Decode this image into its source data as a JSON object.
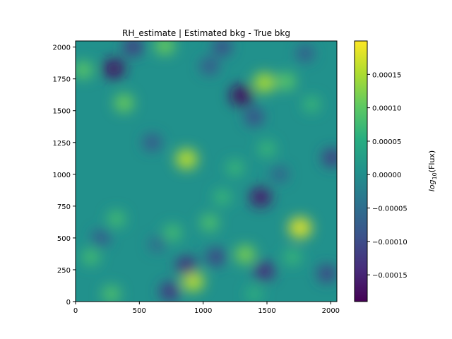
{
  "chart_data": {
    "type": "heatmap",
    "title": "RH_estimate | Estimated bkg - True bkg",
    "xlabel": "",
    "ylabel": "",
    "xlim": [
      0,
      2048
    ],
    "ylim": [
      0,
      2048
    ],
    "x_ticks": [
      {
        "value": 0,
        "label": "0"
      },
      {
        "value": 500,
        "label": "500"
      },
      {
        "value": 1000,
        "label": "1000"
      },
      {
        "value": 1500,
        "label": "1500"
      },
      {
        "value": 2000,
        "label": "2000"
      }
    ],
    "y_ticks": [
      {
        "value": 0,
        "label": "0"
      },
      {
        "value": 250,
        "label": "250"
      },
      {
        "value": 500,
        "label": "500"
      },
      {
        "value": 750,
        "label": "750"
      },
      {
        "value": 1000,
        "label": "1000"
      },
      {
        "value": 1250,
        "label": "1250"
      },
      {
        "value": 1500,
        "label": "1500"
      },
      {
        "value": 1750,
        "label": "1750"
      },
      {
        "value": 2000,
        "label": "2000"
      }
    ],
    "colormap": "viridis",
    "colorbar": {
      "label_prefix": "log",
      "label_subscript": "10",
      "label_suffix": "(Flux)",
      "vmin": -0.00019,
      "vmax": 0.0002,
      "ticks": [
        {
          "value": -0.00015,
          "label": "−0.00015"
        },
        {
          "value": -0.0001,
          "label": "−0.00010"
        },
        {
          "value": -5e-05,
          "label": "−0.00005"
        },
        {
          "value": 0,
          "label": "0.00000"
        },
        {
          "value": 5e-05,
          "label": "0.00005"
        },
        {
          "value": 0.0001,
          "label": "0.00010"
        },
        {
          "value": 0.00015,
          "label": "0.00015"
        }
      ]
    },
    "blobs": [
      {
        "x": 1760,
        "y": 580,
        "value": 0.00018
      },
      {
        "x": 1480,
        "y": 1720,
        "value": 0.00015
      },
      {
        "x": 870,
        "y": 1120,
        "value": 0.00016
      },
      {
        "x": 920,
        "y": 160,
        "value": 0.00016
      },
      {
        "x": 1330,
        "y": 370,
        "value": 0.00012
      },
      {
        "x": 380,
        "y": 1560,
        "value": 0.00011
      },
      {
        "x": 700,
        "y": 2010,
        "value": 0.00011
      },
      {
        "x": 1650,
        "y": 1730,
        "value": 0.0001
      },
      {
        "x": 60,
        "y": 1820,
        "value": 0.0001
      },
      {
        "x": 280,
        "y": 60,
        "value": 9e-05
      },
      {
        "x": 1050,
        "y": 620,
        "value": 9e-05
      },
      {
        "x": 760,
        "y": 540,
        "value": 8e-05
      },
      {
        "x": 320,
        "y": 650,
        "value": 8e-05
      },
      {
        "x": 1150,
        "y": 820,
        "value": 7e-05
      },
      {
        "x": 1500,
        "y": 1200,
        "value": 7e-05
      },
      {
        "x": 120,
        "y": 350,
        "value": 8e-05
      },
      {
        "x": 1850,
        "y": 1550,
        "value": 7e-05
      },
      {
        "x": 1700,
        "y": 350,
        "value": 7e-05
      },
      {
        "x": 1250,
        "y": 1050,
        "value": 7e-05
      },
      {
        "x": 1400,
        "y": 60,
        "value": 6e-05
      },
      {
        "x": 1300,
        "y": 1620,
        "value": -0.00018
      },
      {
        "x": 300,
        "y": 1830,
        "value": -0.00017
      },
      {
        "x": 1450,
        "y": 820,
        "value": -0.00016
      },
      {
        "x": 870,
        "y": 280,
        "value": -0.00014
      },
      {
        "x": 1480,
        "y": 240,
        "value": -0.00014
      },
      {
        "x": 740,
        "y": 80,
        "value": -0.00013
      },
      {
        "x": 450,
        "y": 2000,
        "value": -0.00012
      },
      {
        "x": 2010,
        "y": 1130,
        "value": -0.00012
      },
      {
        "x": 1100,
        "y": 350,
        "value": -0.00011
      },
      {
        "x": 1970,
        "y": 220,
        "value": -0.00011
      },
      {
        "x": 1400,
        "y": 1450,
        "value": -0.0001
      },
      {
        "x": 600,
        "y": 1250,
        "value": -9e-05
      },
      {
        "x": 1050,
        "y": 1850,
        "value": -9e-05
      },
      {
        "x": 200,
        "y": 500,
        "value": -8e-05
      },
      {
        "x": 1800,
        "y": 1950,
        "value": -8e-05
      },
      {
        "x": 1150,
        "y": 2000,
        "value": -0.0001
      },
      {
        "x": 640,
        "y": 450,
        "value": -6e-05
      },
      {
        "x": 1600,
        "y": 1000,
        "value": -7e-05
      }
    ]
  }
}
